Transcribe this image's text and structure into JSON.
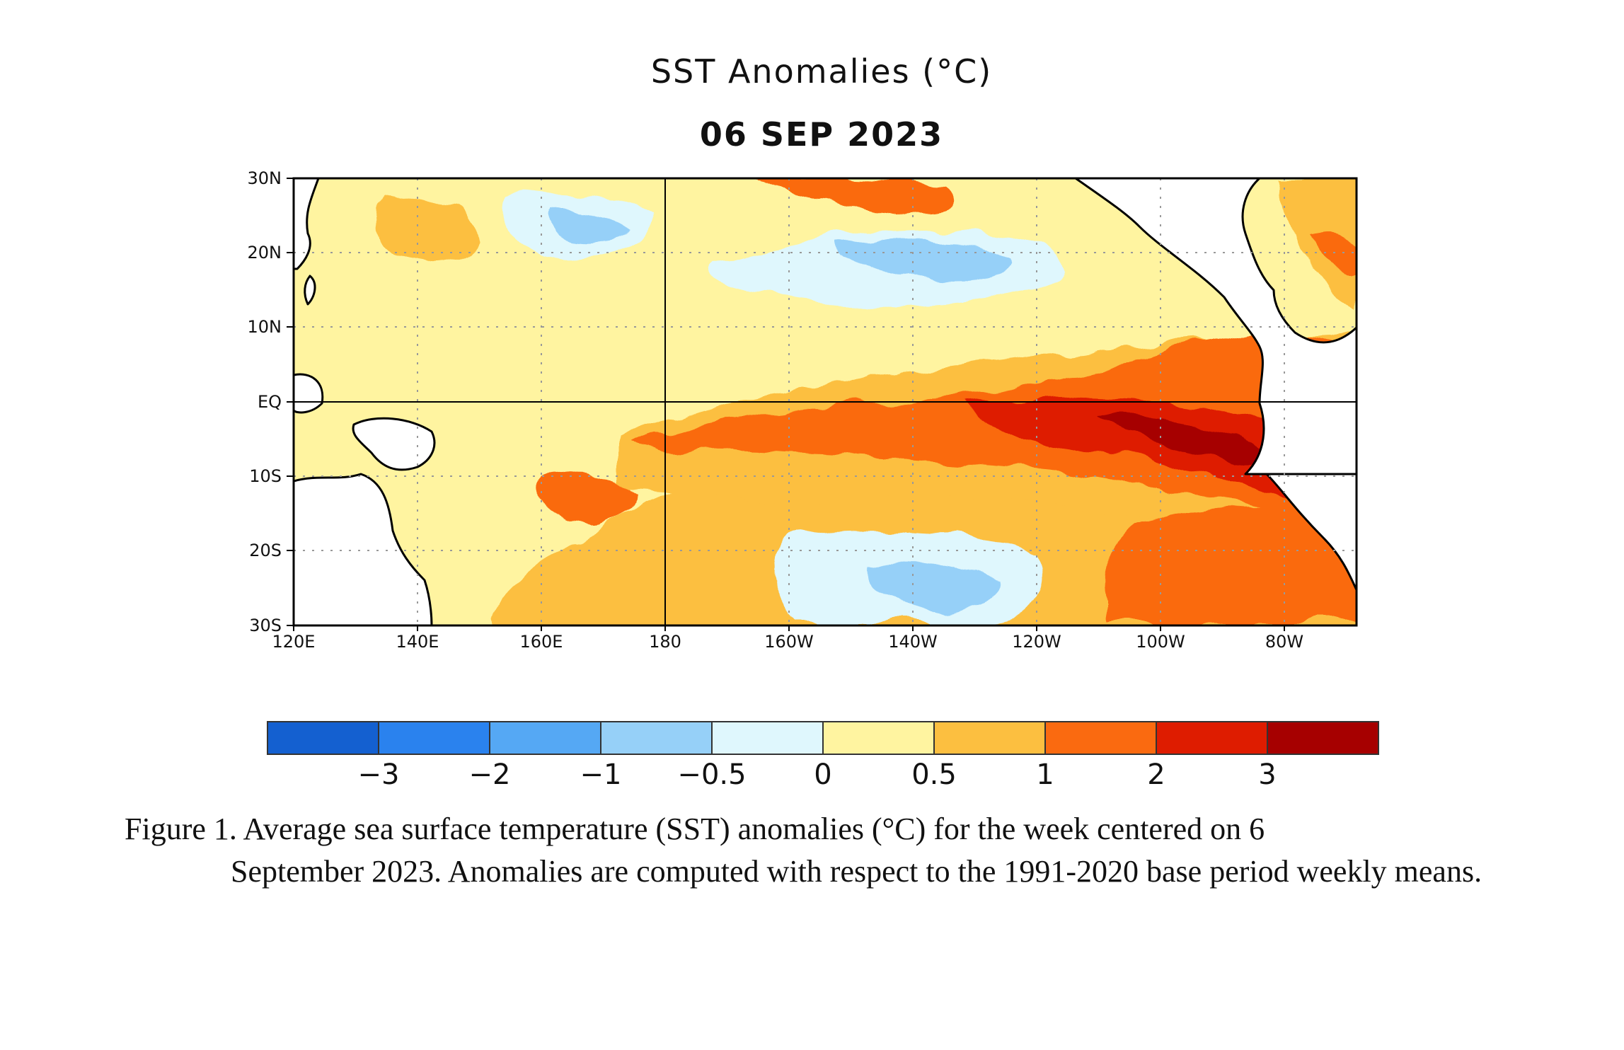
{
  "title": "SST Anomalies (°C)",
  "date": "06 SEP 2023",
  "map": {
    "lat_labels": [
      "30N",
      "20N",
      "10N",
      "EQ",
      "10S",
      "20S",
      "30S"
    ],
    "lon_labels": [
      "120E",
      "140E",
      "160E",
      "180",
      "160W",
      "140W",
      "120W",
      "100W",
      "80W"
    ]
  },
  "colorbar": {
    "colors": [
      "#1460d0",
      "#2a82ee",
      "#55a8f4",
      "#96d0f8",
      "#dff7fd",
      "#fff4a0",
      "#fcbf40",
      "#fa6a10",
      "#de1c00",
      "#a60000"
    ],
    "labels": [
      "−3",
      "−2",
      "−1",
      "−0.5",
      "0",
      "0.5",
      "1",
      "2",
      "3"
    ]
  },
  "caption": {
    "first_line": "Figure 1. Average sea surface temperature (SST) anomalies (°C) for the week centered on 6",
    "rest": "September 2023.  Anomalies are computed with respect to the 1991-2020 base period weekly means."
  }
}
